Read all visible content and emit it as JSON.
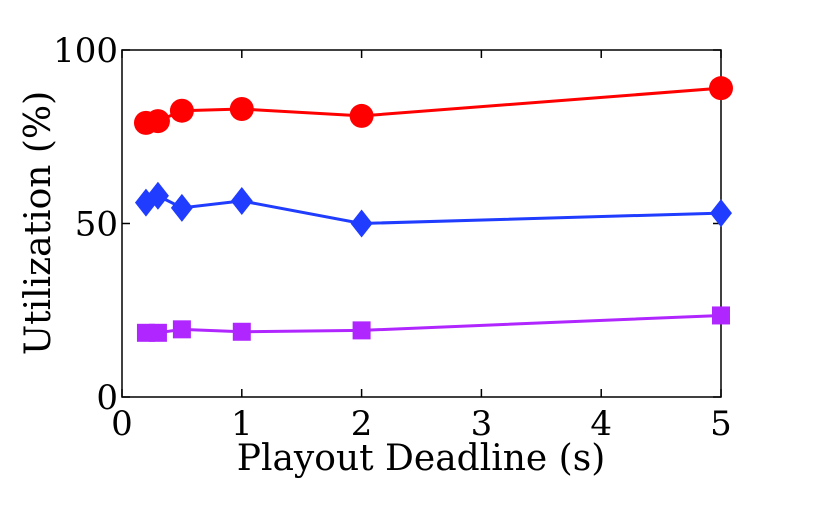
{
  "chart_data": {
    "type": "line",
    "title": "",
    "xlabel": "Playout Deadline (s)",
    "ylabel": "Utilization (%)",
    "xlim": [
      0,
      5
    ],
    "ylim": [
      0,
      100
    ],
    "x_ticks": [
      0,
      1,
      2,
      3,
      4,
      5
    ],
    "y_ticks": [
      0,
      50,
      100
    ],
    "grid": false,
    "legend": "none",
    "x": [
      0.2,
      0.3,
      0.5,
      1,
      2,
      5
    ],
    "series": [
      {
        "color": "#ff0000",
        "marker": "circle",
        "values": [
          79,
          79.5,
          82.5,
          83,
          81,
          89
        ]
      },
      {
        "color": "#1f3cff",
        "marker": "diamond",
        "values": [
          56,
          58,
          54.5,
          56.5,
          50,
          53
        ]
      },
      {
        "color": "#b026ff",
        "marker": "square",
        "values": [
          18.5,
          18.5,
          19.5,
          18.8,
          19.2,
          23.5
        ]
      }
    ]
  }
}
